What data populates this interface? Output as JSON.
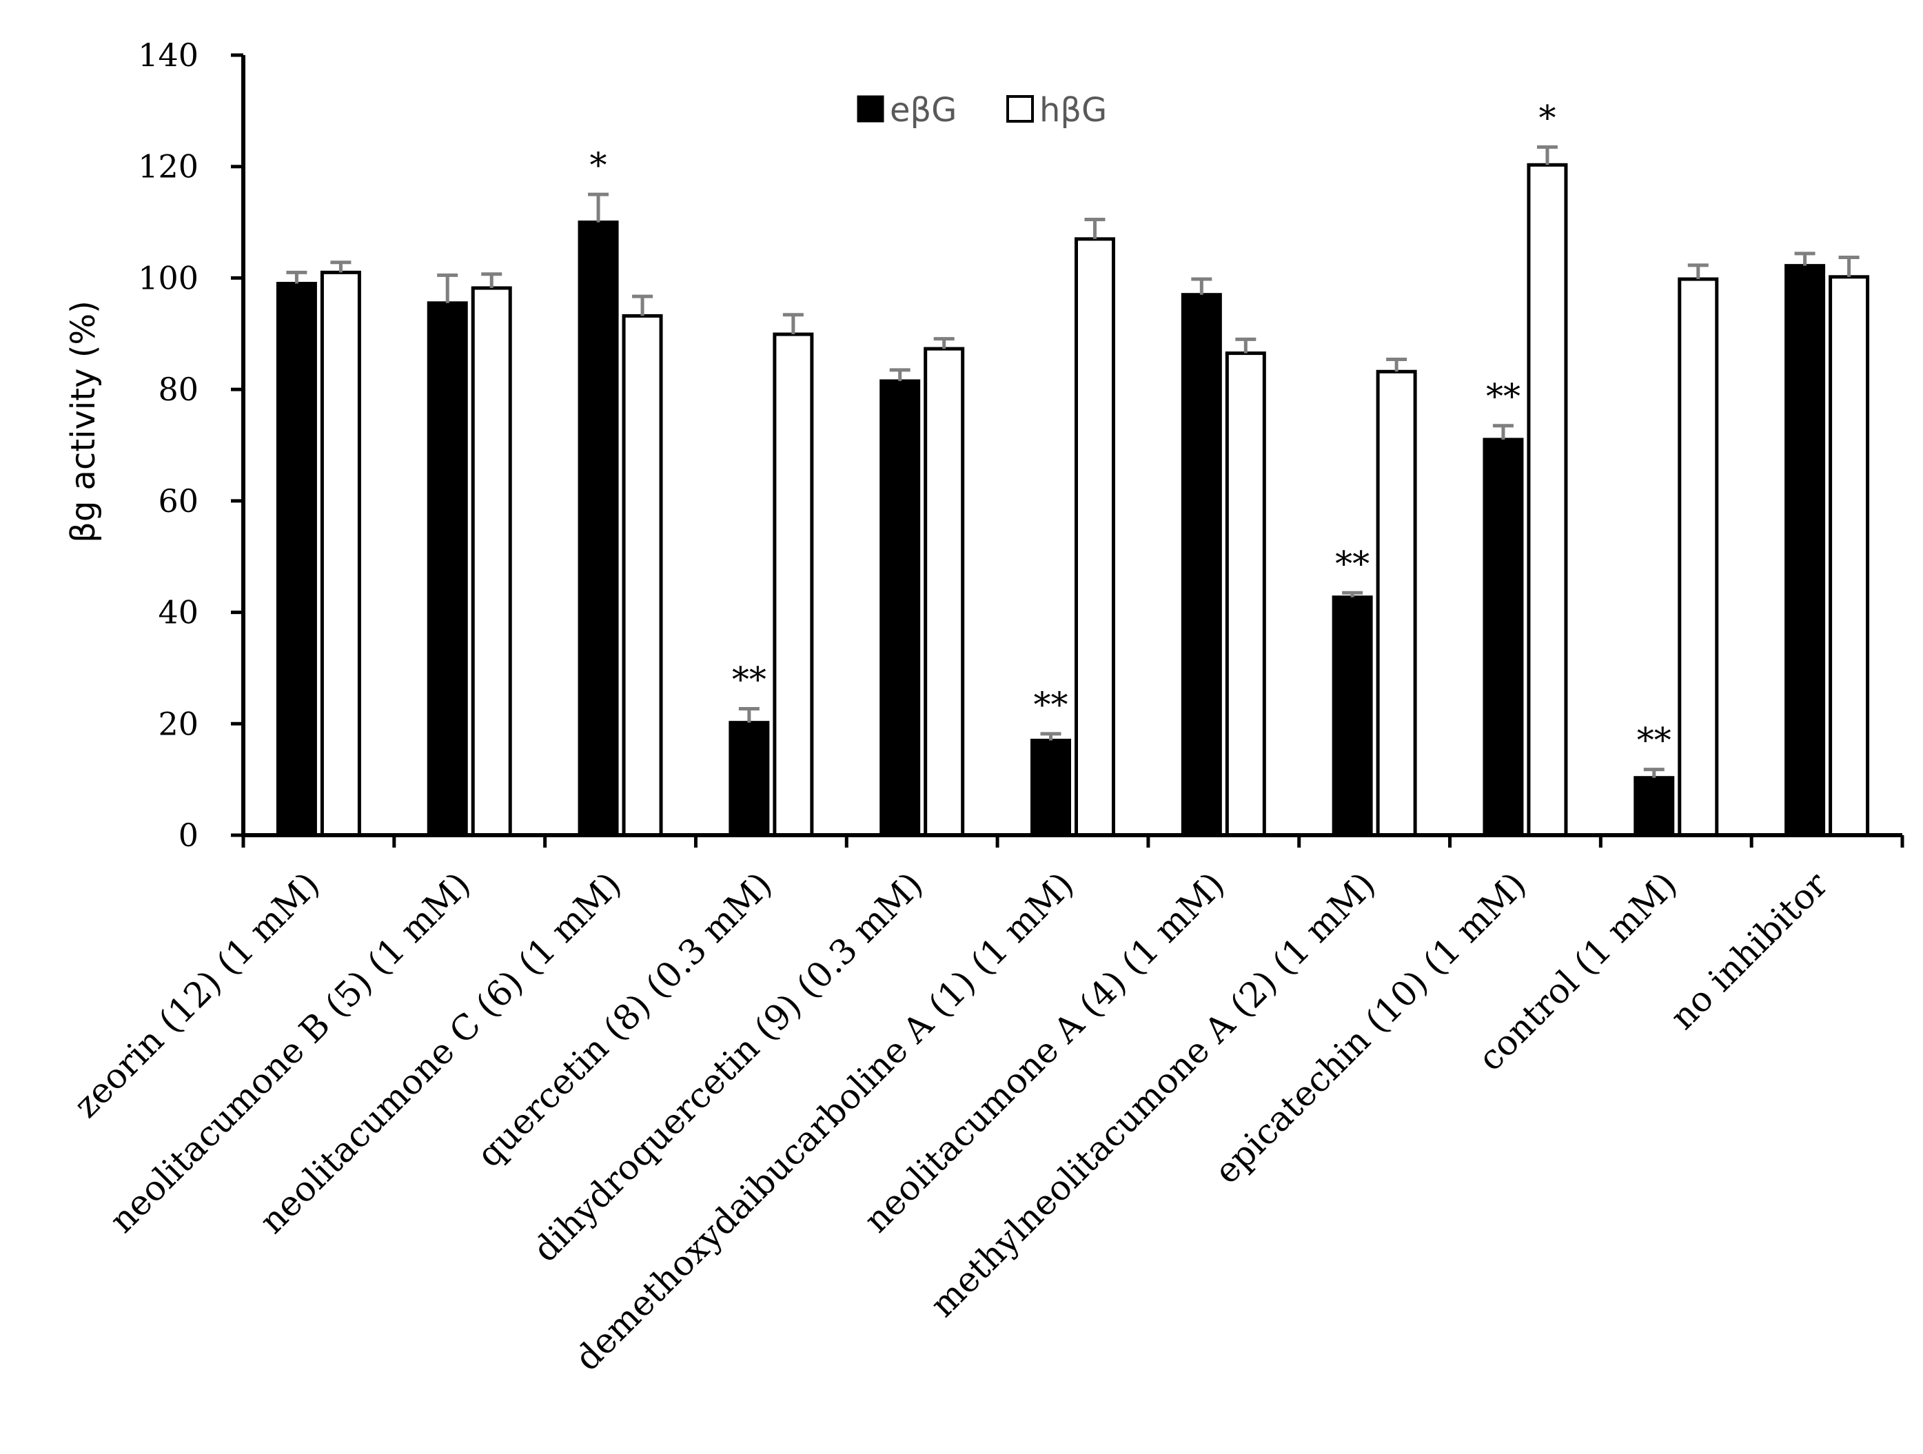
{
  "chart_data": {
    "type": "bar",
    "title": "",
    "xlabel": "",
    "ylabel": "βg activity (%)",
    "ylim": [
      0,
      140
    ],
    "yticks": [
      0,
      20,
      40,
      60,
      80,
      100,
      120,
      140
    ],
    "grid": false,
    "legend_position": "top-center",
    "categories": [
      "zeorin (12) (1 mM)",
      "neolitacumone B (5) (1 mM)",
      "neolitacumone C (6) (1 mM)",
      "quercetin (8) (0.3 mM)",
      "dihydroquercetin (9) (0.3 mM)",
      "demethoxydaibucarboline A (1) (1 mM)",
      "neolitacumone A (4) (1 mM)",
      "methylneolitacumone A (2) (1 mM)",
      "epicatechin (10) (1 mM)",
      "control (1 mM)",
      "no inhibitor"
    ],
    "series": [
      {
        "name": "eβG",
        "color": "#000000",
        "values": [
          99,
          95.5,
          110,
          20.2,
          81.5,
          17,
          97,
          42.7,
          71,
          10.3,
          102.2
        ],
        "errors": [
          2,
          5,
          5,
          2.5,
          2,
          1.2,
          2.8,
          0.8,
          2.5,
          1.5,
          2.2
        ],
        "significance": [
          "",
          "",
          "*",
          "**",
          "",
          "**",
          "",
          "**",
          "**",
          "**",
          ""
        ]
      },
      {
        "name": "hβG",
        "color": "#ffffff",
        "values": [
          101,
          98.2,
          93.2,
          89.9,
          87.3,
          107,
          86.5,
          83.2,
          120.3,
          99.8,
          100.2
        ],
        "errors": [
          1.8,
          2.5,
          3.5,
          3.5,
          1.8,
          3.5,
          2.5,
          2.2,
          3.2,
          2.5,
          3.5
        ],
        "significance": [
          "",
          "",
          "",
          "",
          "",
          "",
          "",
          "",
          "*",
          "",
          ""
        ]
      }
    ]
  }
}
